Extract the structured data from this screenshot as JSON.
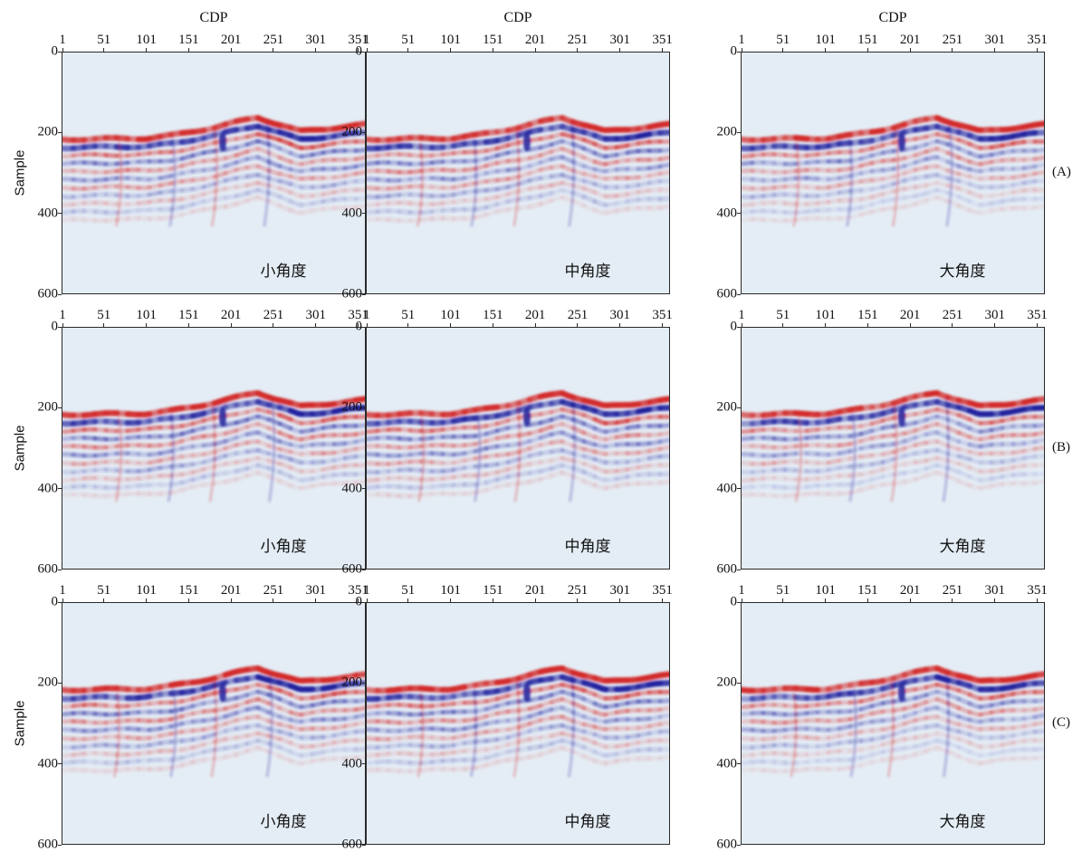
{
  "figure": {
    "x_axis_title": "CDP",
    "y_axis_title": "Sample",
    "x_ticks": [
      "1",
      "51",
      "101",
      "151",
      "201",
      "251",
      "301",
      "351"
    ],
    "y_ticks": [
      "0",
      "200",
      "400",
      "600"
    ],
    "columns": [
      "小角度",
      "中角度",
      "大角度"
    ],
    "rows": [
      "(A)",
      "(B)",
      "(C)"
    ],
    "colors": {
      "positive": "#d32a2a",
      "negative": "#22229e",
      "background": "#e4edf5"
    }
  },
  "chart_data": {
    "type": "heatmap",
    "xlabel": "CDP",
    "ylabel": "Sample",
    "xlim": [
      1,
      360
    ],
    "ylim": [
      600,
      0
    ],
    "reflector_top_sample": [
      {
        "cdp": 1,
        "sample": 215
      },
      {
        "cdp": 101,
        "sample": 212
      },
      {
        "cdp": 131,
        "sample": 205
      },
      {
        "cdp": 181,
        "sample": 185
      },
      {
        "cdp": 231,
        "sample": 160
      },
      {
        "cdp": 281,
        "sample": 195
      },
      {
        "cdp": 361,
        "sample": 178
      }
    ],
    "data_bottom_sample": 450
  }
}
